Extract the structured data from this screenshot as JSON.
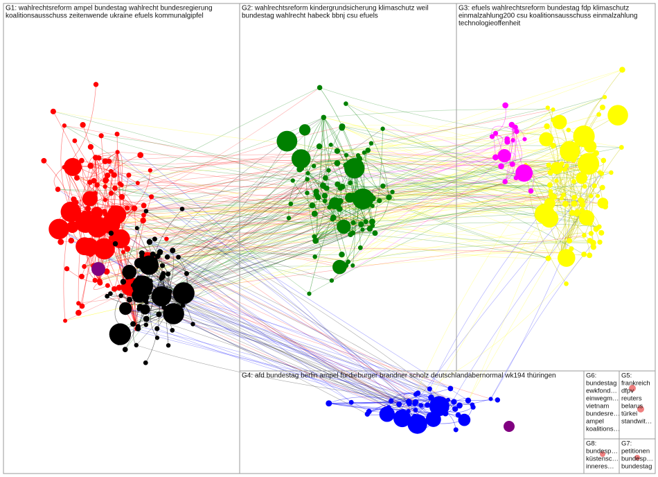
{
  "groups": [
    {
      "lines": [
        "G1: wahlrechtsreform ampel bundestag wahlrecht bundesregierung",
        "koalitionsausschuss zeitenwende ukraine efuels kommunalgipfel"
      ]
    },
    {
      "lines": [
        "G2: wahlrechtsreform kindergrundsicherung klimaschutz weil",
        "bundestag wahlrecht habeck bbnj csu efuels"
      ]
    },
    {
      "lines": [
        "G3: efuels wahlrechtsreform bundestag fdp klimaschutz",
        "einmalzahlung200 csu koalitionsausschuss einmalzahlung",
        "technologieoffenheit"
      ]
    },
    {
      "lines": [
        "G4: afd bundestag berlin ampel fürdieburger brandner scholz deutschlandabernormal wk194 thüringen"
      ]
    },
    {
      "lines": [
        "G6:",
        "bundestag",
        "ewkfond…",
        "einwegm…",
        "vietnam",
        "bundesre…",
        "ampel",
        "koalitions…"
      ]
    },
    {
      "lines": [
        "G5:",
        "frankreich",
        "dfpv",
        "reuters",
        "belarus",
        "türkei",
        "standwit…"
      ]
    },
    {
      "lines": [
        "G8:",
        "bundesp…",
        "küstensc…",
        "inneres…"
      ]
    },
    {
      "lines": [
        "G7:",
        "petitionen",
        "bundesp…",
        "bundestag"
      ]
    }
  ]
}
